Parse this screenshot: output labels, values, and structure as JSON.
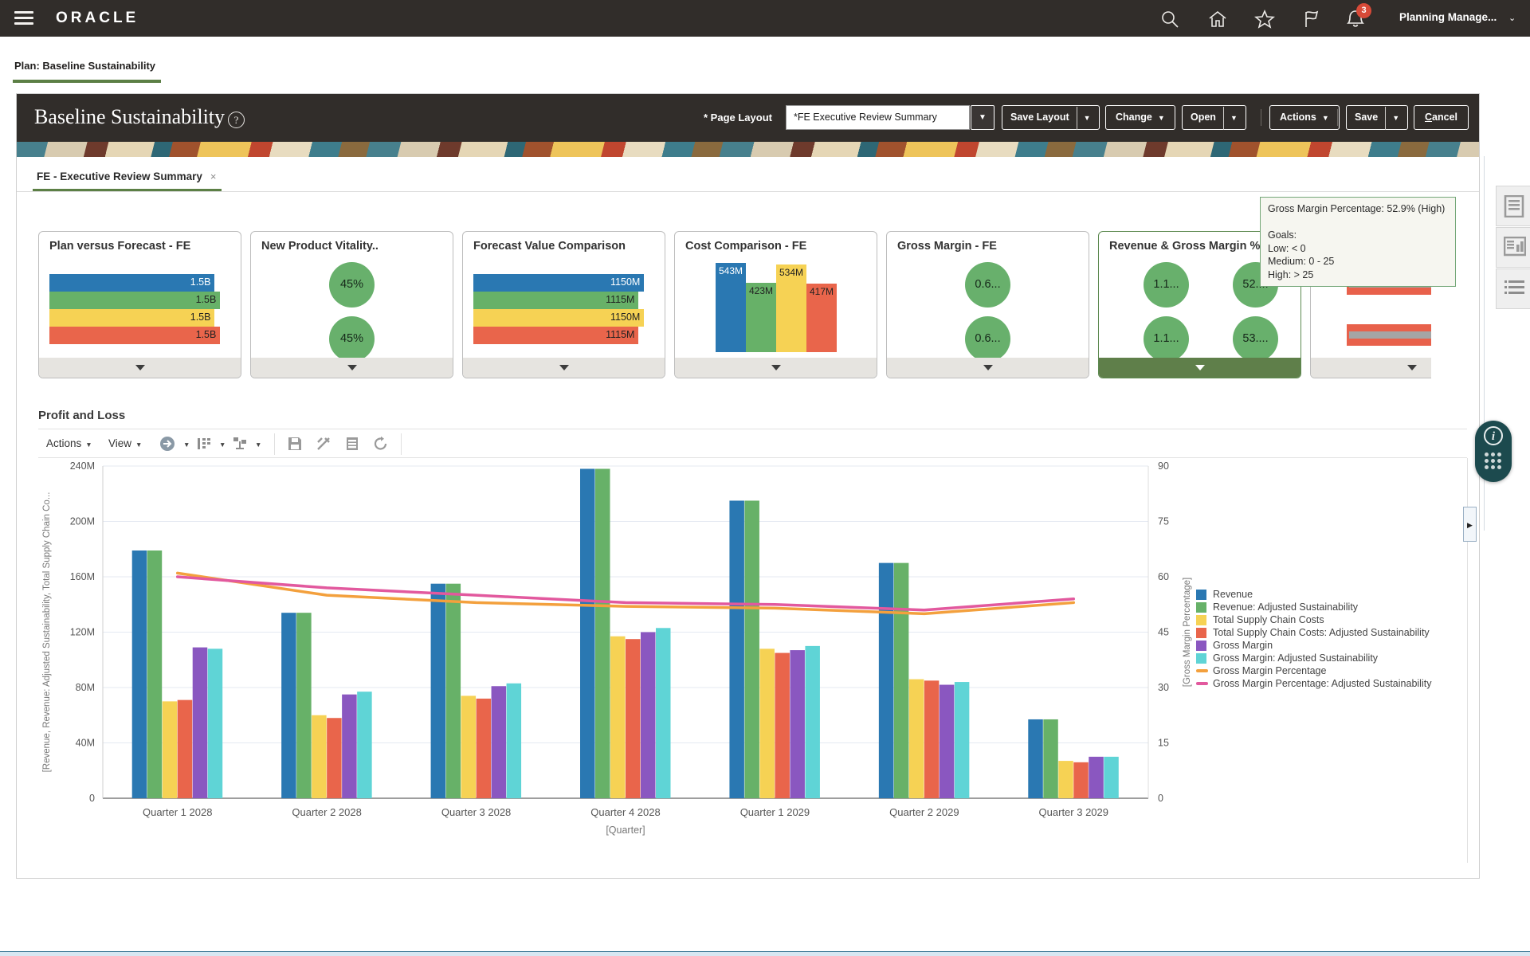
{
  "colors": {
    "topbar_bg": "#312d2a",
    "accent_green": "#5c7f45",
    "selected_card_green": "#5f7f4a",
    "blue": "#2a78b2",
    "green": "#67b168",
    "yellow": "#f6d254",
    "red": "#e9654b",
    "purple": "#8a57c0",
    "cyan": "#5fd4d6",
    "orange_line": "#f3a03d",
    "pink_line": "#e2599e",
    "badge_red": "#d84a38",
    "circle_green": "#68b06c"
  },
  "topbar": {
    "brand": "ORACLE",
    "user_menu": "Planning Manage...",
    "user_caret": "⌄",
    "notification_count": "3"
  },
  "nav_tab": {
    "label": "Plan: Baseline Sustainability"
  },
  "header": {
    "title": "Baseline Sustainability",
    "help": "?",
    "page_layout_label": "* Page Layout",
    "page_layout_value": "*FE Executive Review Summary",
    "buttons": {
      "save_layout": "Save Layout",
      "change": "Change",
      "open": "Open",
      "actions": "Actions",
      "save": "Save",
      "cancel": "Cancel"
    }
  },
  "dashboard_tab": {
    "label": "FE - Executive Review Summary",
    "close": "×"
  },
  "cards": [
    {
      "type": "hbar",
      "title": "Plan versus Forecast - FE",
      "bars": [
        {
          "label": "1.5B",
          "width": 0.91,
          "color": "#2a78b2",
          "text": "#ffffff"
        },
        {
          "label": "1.5B",
          "width": 0.94,
          "color": "#67b168",
          "text": "#222222"
        },
        {
          "label": "1.5B",
          "width": 0.91,
          "color": "#f6d254",
          "text": "#222222"
        },
        {
          "label": "1.5B",
          "width": 0.94,
          "color": "#e9654b",
          "text": "#222222"
        }
      ]
    },
    {
      "type": "circles",
      "title": "New Product Vitality..",
      "rows": [
        [
          "45%"
        ],
        [
          "45%"
        ]
      ]
    },
    {
      "type": "hbar",
      "title": "Forecast Value Comparison",
      "bars": [
        {
          "label": "1150M",
          "width": 0.94,
          "color": "#2a78b2",
          "text": "#ffffff"
        },
        {
          "label": "1115M",
          "width": 0.91,
          "color": "#67b168",
          "text": "#222222"
        },
        {
          "label": "1150M",
          "width": 0.94,
          "color": "#f6d254",
          "text": "#222222"
        },
        {
          "label": "1115M",
          "width": 0.91,
          "color": "#e9654b",
          "text": "#222222"
        }
      ]
    },
    {
      "type": "vbar",
      "title": "Cost Comparison - FE",
      "bars": [
        {
          "label": "543M",
          "h": 1.0,
          "color": "#2a78b2",
          "text": "#ffffff"
        },
        {
          "label": "423M",
          "h": 0.78,
          "color": "#67b168",
          "text": "#222222"
        },
        {
          "label": "534M",
          "h": 0.985,
          "color": "#f6d254",
          "text": "#222222"
        },
        {
          "label": "417M",
          "h": 0.77,
          "color": "#e9654b",
          "text": "#222222"
        }
      ]
    },
    {
      "type": "circles",
      "title": "Gross Margin - FE",
      "rows": [
        [
          "0.6..."
        ],
        [
          "0.6..."
        ]
      ]
    },
    {
      "type": "circles",
      "title": "Revenue & Gross Margin %",
      "selected": true,
      "rows": [
        [
          "1.1...",
          "52...."
        ],
        [
          "1.1...",
          "53...."
        ]
      ]
    },
    {
      "type": "bullet",
      "title": "",
      "gauges": [
        {
          "value": "4.66"
        },
        {
          "value": "4.17"
        }
      ]
    }
  ],
  "tooltip": {
    "lines": [
      "Gross Margin Percentage: 52.9%  (High)",
      "",
      "Goals:",
      "Low: < 0",
      "Medium: 0 - 25",
      "High: > 25"
    ]
  },
  "section": {
    "title": "Profit and Loss",
    "toolbar": {
      "actions": "Actions",
      "view": "View"
    }
  },
  "chart_data": {
    "type": "bar+line",
    "categories": [
      "Quarter 1 2028",
      "Quarter 2 2028",
      "Quarter 3 2028",
      "Quarter 4 2028",
      "Quarter 1 2029",
      "Quarter 2 2029",
      "Quarter 3 2029"
    ],
    "series": [
      {
        "name": "Revenue",
        "color": "#2a78b2",
        "values": [
          179,
          134,
          155,
          238,
          215,
          170,
          57
        ]
      },
      {
        "name": "Revenue: Adjusted Sustainability",
        "color": "#67b168",
        "values": [
          179,
          134,
          155,
          238,
          215,
          170,
          57
        ]
      },
      {
        "name": "Total Supply Chain Costs",
        "color": "#f6d254",
        "values": [
          70,
          60,
          74,
          117,
          108,
          86,
          27
        ]
      },
      {
        "name": "Total Supply Chain Costs: Adjusted Sustainability",
        "color": "#e9654b",
        "values": [
          71,
          58,
          72,
          115,
          105,
          85,
          26
        ]
      },
      {
        "name": "Gross Margin",
        "color": "#8a57c0",
        "values": [
          109,
          75,
          81,
          120,
          107,
          82,
          30
        ]
      },
      {
        "name": "Gross Margin: Adjusted Sustainability",
        "color": "#5fd4d6",
        "values": [
          108,
          77,
          83,
          123,
          110,
          84,
          30
        ]
      }
    ],
    "line_series": [
      {
        "name": "Gross Margin Percentage",
        "color": "#f3a03d",
        "values": [
          61,
          55,
          53,
          52,
          51.5,
          50,
          53
        ]
      },
      {
        "name": "Gross Margin Percentage: Adjusted Sustainability",
        "color": "#e2599e",
        "values": [
          60,
          57,
          55,
          53,
          52.5,
          51,
          54
        ]
      }
    ],
    "ylabel": "[Revenue, Revenue: Adjusted Sustainability, Total Supply Chain Co...",
    "y2label": "[Gross Margin Percentage]",
    "xlabel": "[Quarter]",
    "ylim": [
      0,
      240
    ],
    "ytick_step": 40,
    "yunit": "M",
    "y2lim": [
      0,
      90
    ],
    "y2tick_step": 15,
    "grid": true,
    "legend_position": "right"
  }
}
